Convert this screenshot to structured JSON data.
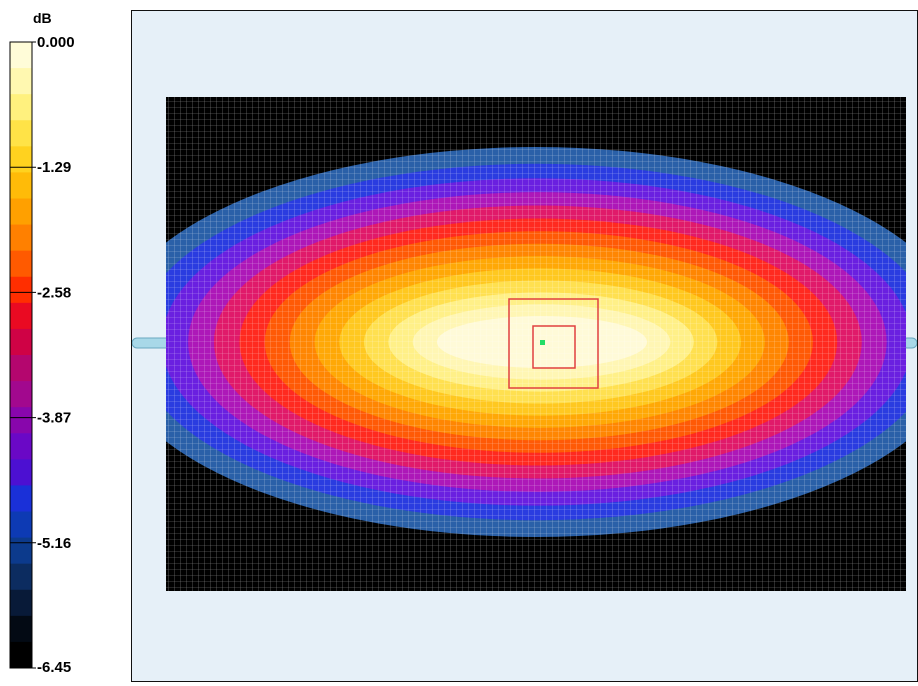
{
  "chart_data": {
    "type": "heatmap",
    "unit_label": "dB",
    "colorbar": {
      "min": -6.45,
      "max": 0.0,
      "tick_labels": [
        "0.000",
        "-1.29",
        "-2.58",
        "-3.87",
        "-5.16",
        "-6.45"
      ],
      "tick_values": [
        0.0,
        -1.29,
        -2.58,
        -3.87,
        -5.16,
        -6.45
      ],
      "bands_top_to_bottom": [
        "#fffcd8",
        "#fff8b0",
        "#fff17e",
        "#ffe347",
        "#ffd21f",
        "#ffbb08",
        "#ffa000",
        "#ff8000",
        "#ff5a00",
        "#ff2e00",
        "#ea0a22",
        "#cf0245",
        "#b4066e",
        "#a2088e",
        "#8806ac",
        "#6a08c6",
        "#4c10d2",
        "#1a30d8",
        "#0d3ab4",
        "#0c3a8c",
        "#0c2c60",
        "#081a38",
        "#030a14",
        "#000000"
      ]
    },
    "field": {
      "contour_levels_outer_to_inner": [
        "#2a60a8",
        "#2a3ce0",
        "#6a20e0",
        "#ad18b8",
        "#e01a6a",
        "#ff2a20",
        "#ff5a06",
        "#ff8602",
        "#ffa806",
        "#ffc820",
        "#ffe050",
        "#fff088",
        "#fff6b4",
        "#fffad8"
      ],
      "background_color": "#000000",
      "mesh_color": "#ffffff"
    },
    "markers": {
      "outer_box_color": "#e04040",
      "inner_box_color": "#e04040",
      "center_point_color": "#22dd66"
    },
    "feed_line_color": "#a8d8e8"
  }
}
